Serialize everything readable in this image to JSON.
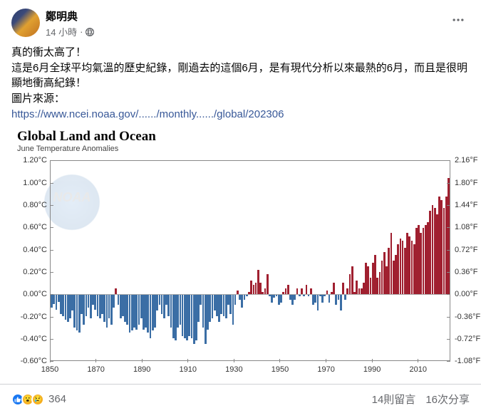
{
  "post": {
    "author": "鄭明典",
    "time": "14 小時",
    "content_lines": [
      "真的衝太高了！",
      "這是6月全球平均氣溫的歷史紀錄，剛過去的這個6月，是有現代分析以來最熱的6月，而且是很明顯地衝高紀錄！",
      "圖片來源："
    ],
    "link_text": "https://www.ncei.noaa.gov/....../monthly....../global/202306"
  },
  "chart": {
    "title": "Global Land and Ocean",
    "subtitle": "June Temperature Anomalies",
    "type": "bar",
    "x_start": 1850,
    "x_end": 2024,
    "x_ticks": [
      1850,
      1870,
      1890,
      1910,
      1930,
      1950,
      1970,
      1990,
      2010
    ],
    "y_left_unit": "°C",
    "y_left_min": -0.6,
    "y_left_max": 1.2,
    "y_left_ticks": [
      -0.6,
      -0.4,
      -0.2,
      0.0,
      0.2,
      0.4,
      0.6,
      0.8,
      1.0,
      1.2
    ],
    "y_right_unit": "°F",
    "y_right_ticks": [
      -1.08,
      -0.72,
      -0.36,
      0.0,
      0.36,
      0.72,
      1.08,
      1.44,
      1.8,
      2.16
    ],
    "pos_color": "#a02030",
    "neg_color": "#3b6ea5",
    "border_color": "#888888",
    "background_color": "#ffffff",
    "watermark": "NOAA",
    "values": [
      -0.12,
      -0.09,
      -0.14,
      -0.07,
      -0.18,
      -0.2,
      -0.23,
      -0.25,
      -0.22,
      -0.15,
      -0.3,
      -0.33,
      -0.35,
      -0.18,
      -0.28,
      -0.2,
      -0.12,
      -0.22,
      -0.1,
      -0.14,
      -0.2,
      -0.22,
      -0.18,
      -0.25,
      -0.3,
      -0.22,
      -0.28,
      -0.12,
      0.05,
      -0.1,
      -0.22,
      -0.2,
      -0.25,
      -0.28,
      -0.35,
      -0.33,
      -0.3,
      -0.32,
      -0.28,
      -0.22,
      -0.32,
      -0.3,
      -0.35,
      -0.4,
      -0.33,
      -0.3,
      -0.15,
      -0.1,
      -0.18,
      -0.22,
      -0.1,
      -0.2,
      -0.3,
      -0.4,
      -0.42,
      -0.3,
      -0.28,
      -0.38,
      -0.4,
      -0.42,
      -0.38,
      -0.4,
      -0.45,
      -0.42,
      -0.25,
      -0.1,
      -0.3,
      -0.45,
      -0.32,
      -0.25,
      -0.22,
      -0.15,
      -0.2,
      -0.25,
      -0.18,
      -0.2,
      -0.22,
      -0.1,
      -0.18,
      -0.28,
      -0.1,
      0.03,
      -0.05,
      -0.12,
      -0.05,
      -0.02,
      0.02,
      0.12,
      0.08,
      0.1,
      0.22,
      0.1,
      0.02,
      0.05,
      0.18,
      -0.02,
      -0.08,
      -0.03,
      -0.02,
      -0.1,
      -0.08,
      0.02,
      0.05,
      0.08,
      -0.05,
      -0.1,
      -0.05,
      0.05,
      -0.02,
      0.05,
      -0.02,
      0.08,
      -0.02,
      0.05,
      -0.1,
      -0.08,
      -0.15,
      -0.02,
      -0.08,
      -0.02,
      0.03,
      -0.08,
      0.02,
      0.1,
      -0.1,
      -0.05,
      -0.15,
      0.1,
      -0.05,
      0.05,
      0.18,
      0.25,
      0.02,
      0.12,
      0.05,
      0.05,
      0.1,
      0.28,
      0.25,
      0.15,
      0.28,
      0.35,
      0.15,
      0.2,
      0.3,
      0.38,
      0.25,
      0.42,
      0.55,
      0.3,
      0.35,
      0.45,
      0.5,
      0.48,
      0.42,
      0.55,
      0.52,
      0.48,
      0.45,
      0.6,
      0.62,
      0.55,
      0.6,
      0.62,
      0.65,
      0.75,
      0.8,
      0.78,
      0.72,
      0.88,
      0.85,
      0.78,
      0.88,
      1.05
    ]
  },
  "footer": {
    "reaction_count": "364",
    "comments": "14則留言",
    "shares": "16次分享"
  },
  "colors": {
    "link": "#385898",
    "text_secondary": "#65676b"
  }
}
